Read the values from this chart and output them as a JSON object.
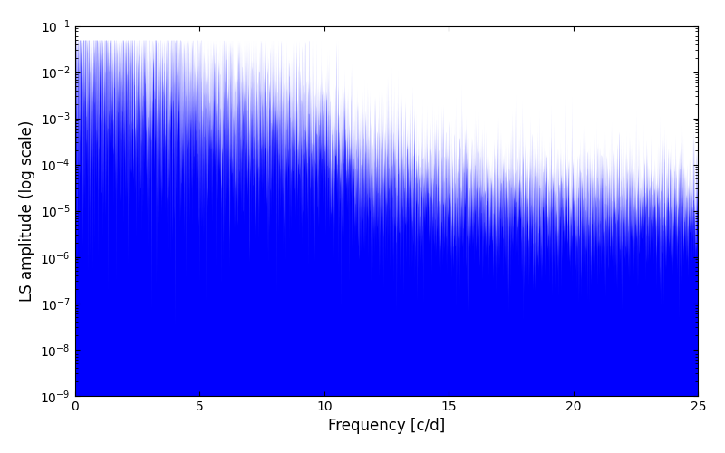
{
  "title": "",
  "xlabel": "Frequency [c/d]",
  "ylabel": "LS amplitude (log scale)",
  "xlim": [
    0,
    25
  ],
  "ylim": [
    1e-09,
    0.1
  ],
  "color": "#0000ff",
  "background_color": "#ffffff",
  "figsize": [
    8.0,
    5.0
  ],
  "dpi": 100,
  "freq_max": 25.0,
  "n_points": 10000,
  "seed": 12345
}
